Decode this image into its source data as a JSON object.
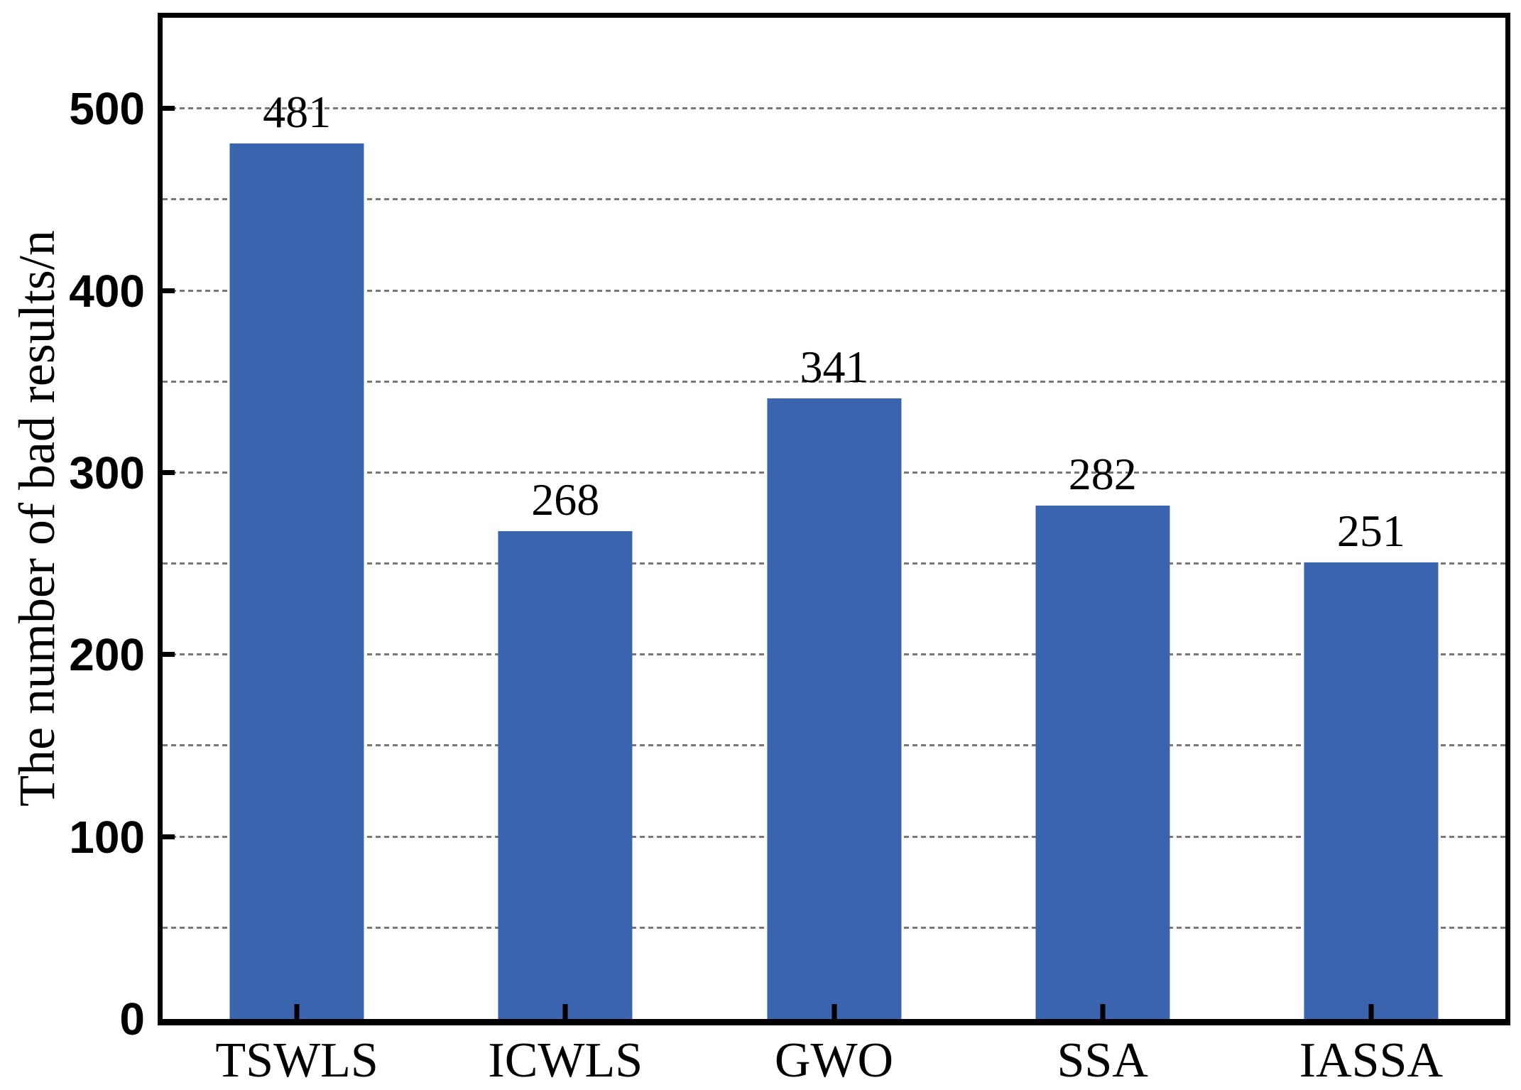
{
  "chart_data": {
    "type": "bar",
    "title": "",
    "categories": [
      "TSWLS",
      "ICWLS",
      "GWO",
      "SSA",
      "IASSA"
    ],
    "values": [
      481,
      268,
      341,
      282,
      251
    ],
    "bar_labels": [
      "481",
      "268",
      "341",
      "282",
      "251"
    ],
    "xlabel": "",
    "ylabel": "The number of bad results/n",
    "ylim": [
      0,
      550
    ],
    "ytick_values": [
      0,
      100,
      200,
      300,
      400,
      500
    ],
    "ytick_labels": [
      "0",
      "100",
      "200",
      "300",
      "400",
      "500"
    ],
    "gridline_values": [
      50,
      100,
      150,
      200,
      250,
      300,
      350,
      400,
      450,
      500
    ],
    "grid_style": "horizontal dashed",
    "legend": "none",
    "colors": {
      "bar": "#3B64AF",
      "grid": "#787878",
      "axis": "#000000",
      "background": "#FFFFFF"
    }
  }
}
